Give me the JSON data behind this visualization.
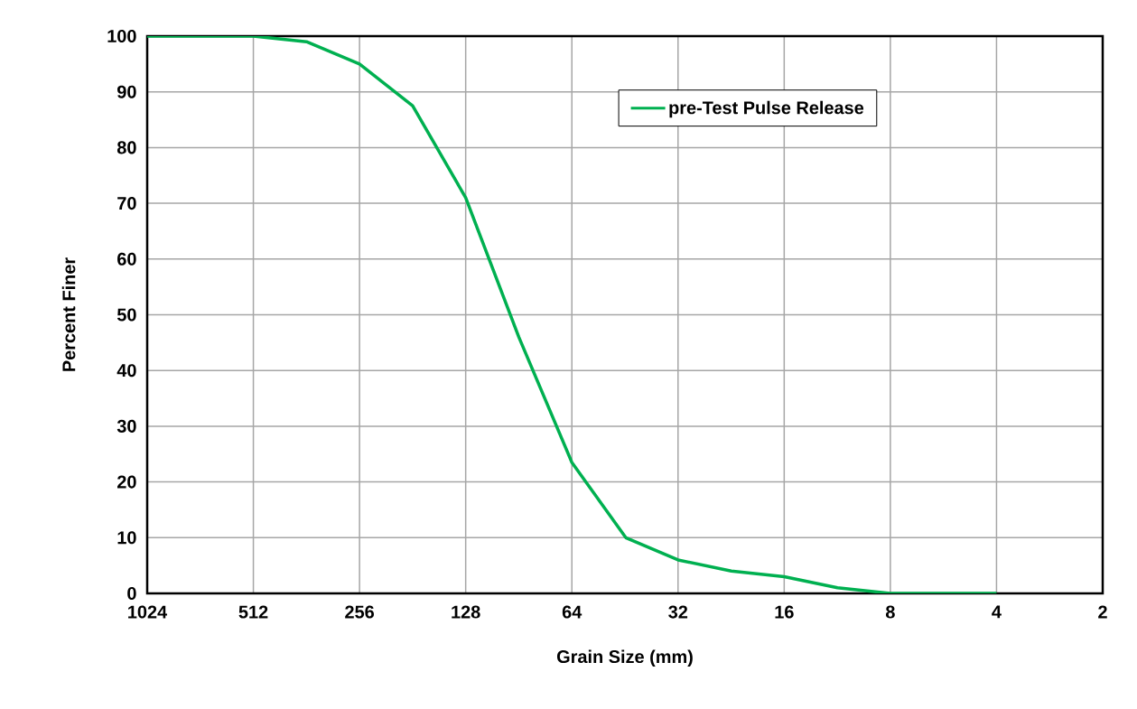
{
  "chart_data": {
    "type": "line",
    "xlabel": "Grain Size (mm)",
    "ylabel": "Percent Finer",
    "log": "x",
    "x": [
      1024,
      512,
      362,
      256,
      181,
      128,
      90.5,
      64,
      45,
      32,
      22.6,
      16,
      11.3,
      8,
      5.6,
      4
    ],
    "series": [
      {
        "name": "pre-Test Pulse Release",
        "color": "#00b050",
        "values": [
          100,
          100,
          99,
          95,
          87.5,
          71,
          46,
          23.5,
          10,
          6,
          4,
          3,
          1,
          0,
          0,
          0
        ]
      }
    ],
    "xlim": [
      1024,
      2
    ],
    "xticks": [
      1024,
      512,
      256,
      128,
      64,
      32,
      16,
      8,
      4,
      2
    ],
    "ylim": [
      0,
      100
    ],
    "yticks": [
      0,
      10,
      20,
      30,
      40,
      50,
      60,
      70,
      80,
      90,
      100
    ],
    "grid": true,
    "legend": "top right",
    "marker": "none",
    "line_style": "solid"
  }
}
